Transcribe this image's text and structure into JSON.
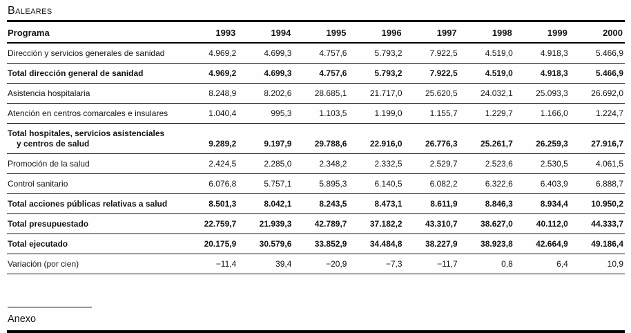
{
  "page": {
    "title": "Baleares",
    "section_heading": "Anexo"
  },
  "table": {
    "header": {
      "program_label": "Programa",
      "years": [
        "1993",
        "1994",
        "1995",
        "1996",
        "1997",
        "1998",
        "1999",
        "2000"
      ]
    },
    "rows": [
      {
        "label": "Dirección y servicios generales de sanidad",
        "bold": false,
        "values": [
          "4.969,2",
          "4.699,3",
          "4.757,6",
          "5.793,2",
          "7.922,5",
          "4.519,0",
          "4.918,3",
          "5.466,9"
        ]
      },
      {
        "label": "Total dirección general de sanidad",
        "bold": true,
        "values": [
          "4.969,2",
          "4.699,3",
          "4.757,6",
          "5.793,2",
          "7.922,5",
          "4.519,0",
          "4.918,3",
          "5.466,9"
        ]
      },
      {
        "label": "Asistencia hospitalaria",
        "bold": false,
        "values": [
          "8.248,9",
          "8.202,6",
          "28.685,1",
          "21.717,0",
          "25.620,5",
          "24.032,1",
          "25.093,3",
          "26.692,0"
        ]
      },
      {
        "label": "Atención en centros comarcales e insulares",
        "bold": false,
        "values": [
          "1.040,4",
          "995,3",
          "1.103,5",
          "1.199,0",
          "1.155,7",
          "1.229,7",
          "1.166,0",
          "1.224,7"
        ]
      },
      {
        "label": "Total hospitales, servicios asistenciales",
        "label_line2": "y centros de salud",
        "bold": true,
        "values": [
          "9.289,2",
          "9.197,9",
          "29.788,6",
          "22.916,0",
          "26.776,3",
          "25.261,7",
          "26.259,3",
          "27.916,7"
        ]
      },
      {
        "label": "Promoción de la salud",
        "bold": false,
        "values": [
          "2.424,5",
          "2.285,0",
          "2.348,2",
          "2.332,5",
          "2.529,7",
          "2.523,6",
          "2.530,5",
          "4.061,5"
        ]
      },
      {
        "label": "Control sanitario",
        "bold": false,
        "values": [
          "6.076,8",
          "5.757,1",
          "5.895,3",
          "6.140,5",
          "6.082,2",
          "6.322,6",
          "6.403,9",
          "6.888,7"
        ]
      },
      {
        "label": "Total acciones públicas relativas a salud",
        "bold": true,
        "values": [
          "8.501,3",
          "8.042,1",
          "8.243,5",
          "8.473,1",
          "8.611,9",
          "8.846,3",
          "8.934,4",
          "10.950,2"
        ]
      },
      {
        "label": "Total presupuestado",
        "bold": true,
        "values": [
          "22.759,7",
          "21.939,3",
          "42.789,7",
          "37.182,2",
          "43.310,7",
          "38.627,0",
          "40.112,0",
          "44.333,7"
        ]
      },
      {
        "label": "Total ejecutado",
        "bold": true,
        "values": [
          "20.175,9",
          "30.579,6",
          "33.852,9",
          "34.484,8",
          "38.227,9",
          "38.923,8",
          "42.664,9",
          "49.186,4"
        ]
      },
      {
        "label": "Variación (por cien)",
        "bold": false,
        "values": [
          "−11,4",
          "39,4",
          "−20,9",
          "−7,3",
          "−11,7",
          "0,8",
          "6,4",
          "10,9"
        ]
      }
    ]
  }
}
